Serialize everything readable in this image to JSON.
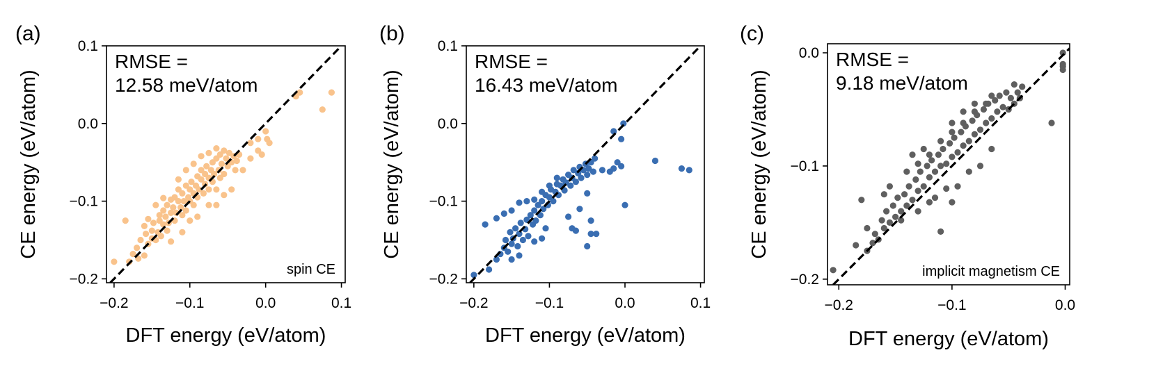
{
  "chart_data": [
    {
      "type": "scatter",
      "panel_label": "(a)",
      "rmse_line1": "RMSE =",
      "rmse_line2": "12.58 meV/atom",
      "annotation": "spin CE",
      "xlabel": "DFT energy (eV/atom)",
      "ylabel": "CE energy (eV/atom)",
      "xlim": [
        -0.21,
        0.105
      ],
      "ylim": [
        -0.205,
        0.1
      ],
      "xticks": [
        -0.2,
        -0.1,
        0.0,
        0.1
      ],
      "xtick_labels": [
        "−0.2",
        "−0.1",
        "0.0",
        "0.1"
      ],
      "yticks": [
        -0.2,
        -0.1,
        0.0,
        0.1
      ],
      "ytick_labels": [
        "−0.2",
        "−0.1",
        "0.0",
        "0.1"
      ],
      "color": "#f9c38c",
      "parity_line": true,
      "points": [
        [
          -0.2,
          -0.178
        ],
        [
          -0.18,
          -0.178
        ],
        [
          -0.175,
          -0.168
        ],
        [
          -0.17,
          -0.16
        ],
        [
          -0.168,
          -0.174
        ],
        [
          -0.16,
          -0.17
        ],
        [
          -0.165,
          -0.15
        ],
        [
          -0.158,
          -0.142
        ],
        [
          -0.155,
          -0.155
        ],
        [
          -0.15,
          -0.148
        ],
        [
          -0.15,
          -0.138
        ],
        [
          -0.148,
          -0.128
        ],
        [
          -0.145,
          -0.15
        ],
        [
          -0.142,
          -0.14
        ],
        [
          -0.14,
          -0.125
        ],
        [
          -0.14,
          -0.118
        ],
        [
          -0.138,
          -0.145
        ],
        [
          -0.135,
          -0.13
        ],
        [
          -0.135,
          -0.112
        ],
        [
          -0.132,
          -0.12
        ],
        [
          -0.13,
          -0.138
        ],
        [
          -0.13,
          -0.105
        ],
        [
          -0.128,
          -0.128
        ],
        [
          -0.125,
          -0.115
        ],
        [
          -0.125,
          -0.098
        ],
        [
          -0.122,
          -0.108
        ],
        [
          -0.12,
          -0.125
        ],
        [
          -0.12,
          -0.095
        ],
        [
          -0.118,
          -0.115
        ],
        [
          -0.115,
          -0.1
        ],
        [
          -0.115,
          -0.085
        ],
        [
          -0.112,
          -0.108
        ],
        [
          -0.11,
          -0.118
        ],
        [
          -0.11,
          -0.09
        ],
        [
          -0.108,
          -0.1
        ],
        [
          -0.105,
          -0.08
        ],
        [
          -0.105,
          -0.112
        ],
        [
          -0.102,
          -0.095
        ],
        [
          -0.1,
          -0.085
        ],
        [
          -0.1,
          -0.1
        ],
        [
          -0.098,
          -0.075
        ],
        [
          -0.095,
          -0.09
        ],
        [
          -0.095,
          -0.105
        ],
        [
          -0.092,
          -0.08
        ],
        [
          -0.09,
          -0.068
        ],
        [
          -0.09,
          -0.095
        ],
        [
          -0.088,
          -0.085
        ],
        [
          -0.085,
          -0.072
        ],
        [
          -0.085,
          -0.06
        ],
        [
          -0.082,
          -0.09
        ],
        [
          -0.08,
          -0.078
        ],
        [
          -0.08,
          -0.065
        ],
        [
          -0.078,
          -0.055
        ],
        [
          -0.075,
          -0.07
        ],
        [
          -0.075,
          -0.085
        ],
        [
          -0.072,
          -0.06
        ],
        [
          -0.07,
          -0.05
        ],
        [
          -0.07,
          -0.075
        ],
        [
          -0.068,
          -0.065
        ],
        [
          -0.065,
          -0.045
        ],
        [
          -0.065,
          -0.085
        ],
        [
          -0.062,
          -0.06
        ],
        [
          -0.06,
          -0.04
        ],
        [
          -0.06,
          -0.07
        ],
        [
          -0.058,
          -0.052
        ],
        [
          -0.055,
          -0.035
        ],
        [
          -0.055,
          -0.065
        ],
        [
          -0.052,
          -0.045
        ],
        [
          -0.05,
          -0.055
        ],
        [
          -0.048,
          -0.038
        ],
        [
          -0.045,
          -0.05
        ],
        [
          -0.042,
          -0.042
        ],
        [
          -0.04,
          -0.06
        ],
        [
          -0.038,
          -0.048
        ],
        [
          -0.035,
          -0.04
        ],
        [
          -0.155,
          -0.123
        ],
        [
          -0.145,
          -0.105
        ],
        [
          -0.135,
          -0.096
        ],
        [
          -0.115,
          -0.072
        ],
        [
          -0.105,
          -0.06
        ],
        [
          -0.095,
          -0.052
        ],
        [
          -0.085,
          -0.042
        ],
        [
          -0.075,
          -0.038
        ],
        [
          -0.065,
          -0.032
        ],
        [
          -0.125,
          -0.152
        ],
        [
          -0.11,
          -0.14
        ],
        [
          -0.1,
          -0.125
        ],
        [
          -0.09,
          -0.12
        ],
        [
          -0.075,
          -0.105
        ],
        [
          -0.065,
          -0.105
        ],
        [
          -0.055,
          -0.092
        ],
        [
          -0.045,
          -0.085
        ],
        [
          -0.185,
          -0.125
        ],
        [
          -0.16,
          -0.132
        ],
        [
          -0.03,
          -0.06
        ],
        [
          -0.02,
          -0.045
        ],
        [
          -0.01,
          -0.035
        ],
        [
          -0.005,
          -0.04
        ],
        [
          0.002,
          -0.02
        ],
        [
          0.005,
          -0.025
        ],
        [
          0.04,
          0.035
        ],
        [
          0.045,
          0.04
        ],
        [
          0.075,
          0.018
        ],
        [
          0.087,
          0.04
        ],
        [
          -0.02,
          -0.025
        ],
        [
          -0.01,
          -0.02
        ],
        [
          0.0,
          -0.01
        ]
      ]
    },
    {
      "type": "scatter",
      "panel_label": "(b)",
      "rmse_line1": "RMSE =",
      "rmse_line2": "16.43 meV/atom",
      "annotation": "",
      "xlabel": "DFT energy (eV/atom)",
      "ylabel": "CE energy (eV/atom)",
      "xlim": [
        -0.21,
        0.105
      ],
      "ylim": [
        -0.205,
        0.1
      ],
      "xticks": [
        -0.2,
        -0.1,
        0.0,
        0.1
      ],
      "xtick_labels": [
        "−0.2",
        "−0.1",
        "0.0",
        "0.1"
      ],
      "yticks": [
        -0.2,
        -0.1,
        0.0,
        0.1
      ],
      "ytick_labels": [
        "−0.2",
        "−0.1",
        "0.0",
        "0.1"
      ],
      "color": "#3a6eb2",
      "parity_line": true,
      "points": [
        [
          -0.2,
          -0.195
        ],
        [
          -0.18,
          -0.188
        ],
        [
          -0.185,
          -0.13
        ],
        [
          -0.17,
          -0.175
        ],
        [
          -0.165,
          -0.168
        ],
        [
          -0.16,
          -0.16
        ],
        [
          -0.158,
          -0.15
        ],
        [
          -0.155,
          -0.165
        ],
        [
          -0.152,
          -0.14
        ],
        [
          -0.15,
          -0.155
        ],
        [
          -0.148,
          -0.148
        ],
        [
          -0.145,
          -0.135
        ],
        [
          -0.142,
          -0.158
        ],
        [
          -0.14,
          -0.142
        ],
        [
          -0.138,
          -0.128
        ],
        [
          -0.135,
          -0.15
        ],
        [
          -0.132,
          -0.136
        ],
        [
          -0.13,
          -0.124
        ],
        [
          -0.128,
          -0.145
        ],
        [
          -0.125,
          -0.118
        ],
        [
          -0.122,
          -0.13
        ],
        [
          -0.12,
          -0.112
        ],
        [
          -0.118,
          -0.125
        ],
        [
          -0.115,
          -0.105
        ],
        [
          -0.112,
          -0.118
        ],
        [
          -0.11,
          -0.1
        ],
        [
          -0.108,
          -0.11
        ],
        [
          -0.105,
          -0.092
        ],
        [
          -0.102,
          -0.105
        ],
        [
          -0.1,
          -0.095
        ],
        [
          -0.098,
          -0.085
        ],
        [
          -0.095,
          -0.1
        ],
        [
          -0.092,
          -0.088
        ],
        [
          -0.09,
          -0.078
        ],
        [
          -0.088,
          -0.092
        ],
        [
          -0.085,
          -0.08
        ],
        [
          -0.082,
          -0.072
        ],
        [
          -0.08,
          -0.086
        ],
        [
          -0.078,
          -0.076
        ],
        [
          -0.075,
          -0.066
        ],
        [
          -0.072,
          -0.08
        ],
        [
          -0.07,
          -0.07
        ],
        [
          -0.068,
          -0.06
        ],
        [
          -0.065,
          -0.075
        ],
        [
          -0.062,
          -0.064
        ],
        [
          -0.06,
          -0.056
        ],
        [
          -0.058,
          -0.07
        ],
        [
          -0.055,
          -0.06
        ],
        [
          -0.052,
          -0.052
        ],
        [
          -0.05,
          -0.066
        ],
        [
          -0.048,
          -0.058
        ],
        [
          -0.045,
          -0.05
        ],
        [
          -0.042,
          -0.062
        ],
        [
          -0.04,
          -0.045
        ],
        [
          -0.17,
          -0.122
        ],
        [
          -0.16,
          -0.116
        ],
        [
          -0.15,
          -0.112
        ],
        [
          -0.14,
          -0.102
        ],
        [
          -0.13,
          -0.1
        ],
        [
          -0.12,
          -0.098
        ],
        [
          -0.11,
          -0.088
        ],
        [
          -0.1,
          -0.08
        ],
        [
          -0.09,
          -0.07
        ],
        [
          -0.15,
          -0.175
        ],
        [
          -0.14,
          -0.17
        ],
        [
          -0.12,
          -0.152
        ],
        [
          -0.11,
          -0.148
        ],
        [
          -0.105,
          -0.135
        ],
        [
          -0.075,
          -0.12
        ],
        [
          -0.06,
          -0.11
        ],
        [
          -0.05,
          -0.09
        ],
        [
          -0.07,
          -0.135
        ],
        [
          -0.065,
          -0.138
        ],
        [
          -0.045,
          -0.142
        ],
        [
          -0.038,
          -0.142
        ],
        [
          -0.05,
          -0.158
        ],
        [
          -0.045,
          -0.125
        ],
        [
          -0.03,
          -0.06
        ],
        [
          -0.02,
          -0.062
        ],
        [
          -0.015,
          -0.058
        ],
        [
          -0.005,
          -0.055
        ],
        [
          -0.01,
          -0.05
        ],
        [
          -0.015,
          -0.01
        ],
        [
          -0.005,
          -0.02
        ],
        [
          -0.002,
          0.0
        ],
        [
          0.0,
          -0.105
        ],
        [
          0.04,
          -0.048
        ],
        [
          0.075,
          -0.058
        ],
        [
          0.085,
          -0.06
        ]
      ]
    },
    {
      "type": "scatter",
      "panel_label": "(c)",
      "rmse_line1": "RMSE =",
      "rmse_line2": "9.18 meV/atom",
      "annotation": "implicit magnetism CE",
      "xlabel": "DFT energy (eV/atom)",
      "ylabel": "CE energy (eV/atom)",
      "xlim": [
        -0.21,
        0.004
      ],
      "ylim": [
        -0.205,
        0.008
      ],
      "xticks": [
        -0.2,
        -0.1,
        0.0
      ],
      "xtick_labels": [
        "−0.2",
        "−0.1",
        "0.0"
      ],
      "yticks": [
        -0.2,
        -0.1,
        0.0
      ],
      "ytick_labels": [
        "−0.2",
        "−0.1",
        "0.0"
      ],
      "color": "#5f5f5f",
      "parity_line": true,
      "points": [
        [
          -0.205,
          -0.192
        ],
        [
          -0.18,
          -0.13
        ],
        [
          -0.175,
          -0.175
        ],
        [
          -0.17,
          -0.168
        ],
        [
          -0.168,
          -0.16
        ],
        [
          -0.165,
          -0.165
        ],
        [
          -0.162,
          -0.148
        ],
        [
          -0.16,
          -0.155
        ],
        [
          -0.158,
          -0.14
        ],
        [
          -0.155,
          -0.15
        ],
        [
          -0.152,
          -0.135
        ],
        [
          -0.15,
          -0.145
        ],
        [
          -0.148,
          -0.128
        ],
        [
          -0.145,
          -0.14
        ],
        [
          -0.142,
          -0.125
        ],
        [
          -0.14,
          -0.135
        ],
        [
          -0.138,
          -0.118
        ],
        [
          -0.135,
          -0.13
        ],
        [
          -0.132,
          -0.112
        ],
        [
          -0.13,
          -0.122
        ],
        [
          -0.128,
          -0.105
        ],
        [
          -0.125,
          -0.118
        ],
        [
          -0.122,
          -0.1
        ],
        [
          -0.12,
          -0.11
        ],
        [
          -0.118,
          -0.095
        ],
        [
          -0.115,
          -0.105
        ],
        [
          -0.112,
          -0.09
        ],
        [
          -0.11,
          -0.1
        ],
        [
          -0.108,
          -0.085
        ],
        [
          -0.105,
          -0.098
        ],
        [
          -0.102,
          -0.08
        ],
        [
          -0.1,
          -0.092
        ],
        [
          -0.098,
          -0.075
        ],
        [
          -0.095,
          -0.088
        ],
        [
          -0.092,
          -0.07
        ],
        [
          -0.09,
          -0.082
        ],
        [
          -0.088,
          -0.065
        ],
        [
          -0.085,
          -0.078
        ],
        [
          -0.082,
          -0.06
        ],
        [
          -0.08,
          -0.072
        ],
        [
          -0.078,
          -0.055
        ],
        [
          -0.075,
          -0.068
        ],
        [
          -0.072,
          -0.05
        ],
        [
          -0.07,
          -0.062
        ],
        [
          -0.068,
          -0.045
        ],
        [
          -0.065,
          -0.058
        ],
        [
          -0.062,
          -0.042
        ],
        [
          -0.06,
          -0.052
        ],
        [
          -0.058,
          -0.038
        ],
        [
          -0.055,
          -0.048
        ],
        [
          -0.052,
          -0.035
        ],
        [
          -0.05,
          -0.05
        ],
        [
          -0.048,
          -0.04
        ],
        [
          -0.045,
          -0.045
        ],
        [
          -0.042,
          -0.035
        ],
        [
          -0.04,
          -0.04
        ],
        [
          -0.14,
          -0.105
        ],
        [
          -0.13,
          -0.098
        ],
        [
          -0.12,
          -0.09
        ],
        [
          -0.11,
          -0.078
        ],
        [
          -0.1,
          -0.07
        ],
        [
          -0.09,
          -0.062
        ],
        [
          -0.08,
          -0.052
        ],
        [
          -0.07,
          -0.045
        ],
        [
          -0.065,
          -0.038
        ],
        [
          -0.145,
          -0.148
        ],
        [
          -0.13,
          -0.14
        ],
        [
          -0.12,
          -0.132
        ],
        [
          -0.115,
          -0.128
        ],
        [
          -0.105,
          -0.12
        ],
        [
          -0.095,
          -0.118
        ],
        [
          -0.085,
          -0.105
        ],
        [
          -0.075,
          -0.1
        ],
        [
          -0.065,
          -0.085
        ],
        [
          -0.11,
          -0.158
        ],
        [
          -0.1,
          -0.132
        ],
        [
          -0.16,
          -0.125
        ],
        [
          -0.155,
          -0.118
        ],
        [
          -0.175,
          -0.155
        ],
        [
          -0.185,
          -0.17
        ],
        [
          -0.135,
          -0.09
        ],
        [
          -0.125,
          -0.085
        ],
        [
          -0.1,
          -0.062
        ],
        [
          -0.09,
          -0.052
        ],
        [
          -0.08,
          -0.045
        ],
        [
          -0.045,
          -0.028
        ],
        [
          -0.04,
          -0.04
        ],
        [
          -0.038,
          -0.03
        ],
        [
          -0.012,
          -0.062
        ],
        [
          -0.002,
          0.0
        ],
        [
          -0.002,
          -0.01
        ],
        [
          -0.002,
          -0.012
        ],
        [
          -0.002,
          -0.015
        ]
      ]
    }
  ]
}
